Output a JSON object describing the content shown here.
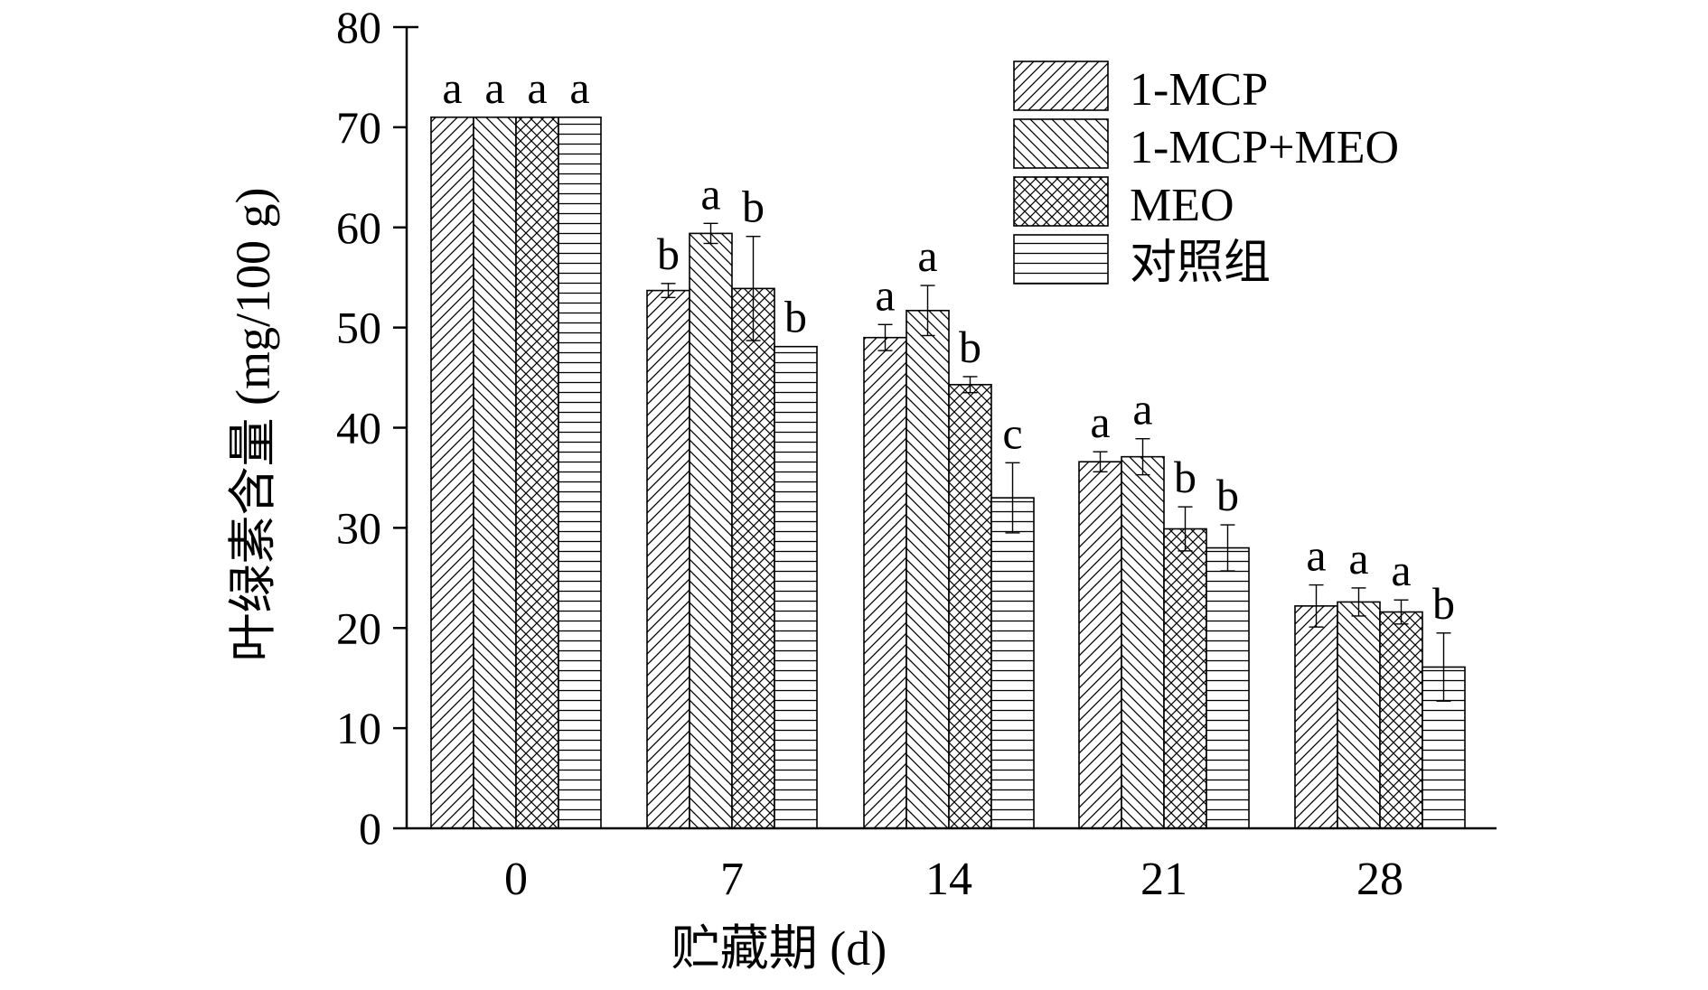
{
  "chart_data": {
    "type": "bar",
    "xlabel": "贮藏期 (d)",
    "ylabel": "叶绿素含量 (mg/100 g)",
    "categories": [
      "0",
      "7",
      "14",
      "21",
      "28"
    ],
    "ylim": [
      0,
      80
    ],
    "yticks": [
      "0",
      "10",
      "20",
      "30",
      "40",
      "50",
      "60",
      "70",
      "80"
    ],
    "legend_position": "top-right",
    "grid": false,
    "series": [
      {
        "name": "1-MCP",
        "pattern": "diagonal-forward",
        "values": [
          71,
          53.7,
          49,
          36.6,
          22.2
        ],
        "errors": [
          0,
          0.7,
          1.3,
          1.0,
          2.1
        ],
        "letters": [
          "a",
          "b",
          "a",
          "a",
          "a"
        ]
      },
      {
        "name": "1-MCP+MEO",
        "pattern": "diagonal-backward",
        "values": [
          71,
          59.4,
          51.7,
          37.1,
          22.6
        ],
        "errors": [
          0,
          1.0,
          2.5,
          1.8,
          1.4
        ],
        "letters": [
          "a",
          "a",
          "a",
          "a",
          "a"
        ]
      },
      {
        "name": "MEO",
        "pattern": "crosshatch",
        "values": [
          71,
          53.9,
          44.3,
          29.9,
          21.6
        ],
        "errors": [
          0,
          5.2,
          0.8,
          2.2,
          1.2
        ],
        "letters": [
          "a",
          "b",
          "b",
          "b",
          "a"
        ]
      },
      {
        "name": "对照组",
        "pattern": "horizontal",
        "values": [
          71,
          48.1,
          33.0,
          28.0,
          16.1
        ],
        "errors": [
          0,
          0,
          3.5,
          2.3,
          3.4
        ],
        "letters": [
          "a",
          "b",
          "c",
          "b",
          "b"
        ]
      }
    ]
  }
}
